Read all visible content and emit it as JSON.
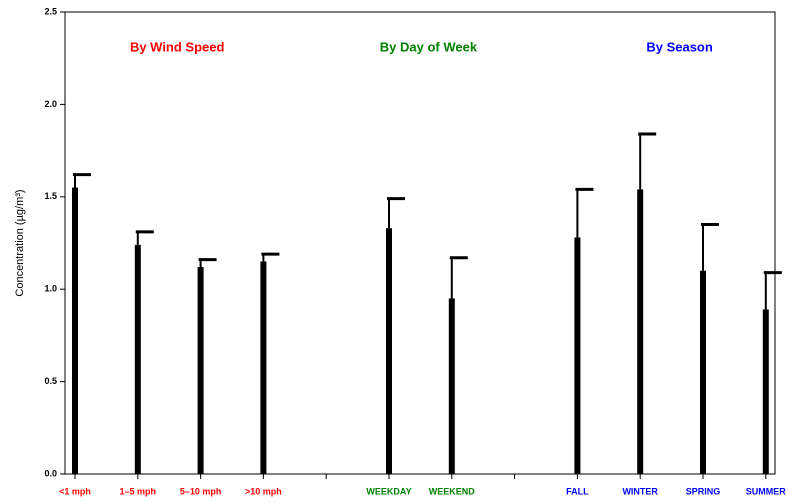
{
  "chart_data": {
    "type": "bar",
    "ylabel": "Concentration (µg/m³)",
    "categories": [
      "<1 mph",
      "1–5 mph",
      "5–10 mph",
      ">10 mph",
      null,
      "WEEKDAY",
      "WEEKEND",
      null,
      "FALL",
      "WINTER",
      "SPRING",
      "SUMMER"
    ],
    "category_colors": [
      "#ff0000",
      "#ff0000",
      "#ff0000",
      "#ff0000",
      null,
      "#008000",
      "#008000",
      null,
      "#0000ff",
      "#0000ff",
      "#0000ff",
      "#0000ff"
    ],
    "values": [
      1.55,
      1.24,
      1.12,
      1.15,
      null,
      1.33,
      0.95,
      null,
      1.28,
      1.54,
      1.1,
      0.89
    ],
    "errors": [
      0.07,
      0.07,
      0.04,
      0.04,
      null,
      0.16,
      0.22,
      null,
      0.26,
      0.3,
      0.25,
      0.2
    ],
    "color": "#000000",
    "groups": [
      {
        "label": "By Wind Speed",
        "color": "#ff0000"
      },
      {
        "label": "By Day of Week",
        "color": "#008000"
      },
      {
        "label": "By Season",
        "color": "#0000ff"
      }
    ],
    "ylim": [
      0,
      2.5
    ],
    "yticks": [
      {
        "value": 0,
        "label": "0.0"
      },
      {
        "value": 0.5,
        "label": "0.5"
      },
      {
        "value": 1,
        "label": "1.0"
      },
      {
        "value": 1.5,
        "label": "1.5"
      },
      {
        "value": 2,
        "label": "2.0"
      },
      {
        "value": 2.5,
        "label": "2.5"
      }
    ]
  }
}
